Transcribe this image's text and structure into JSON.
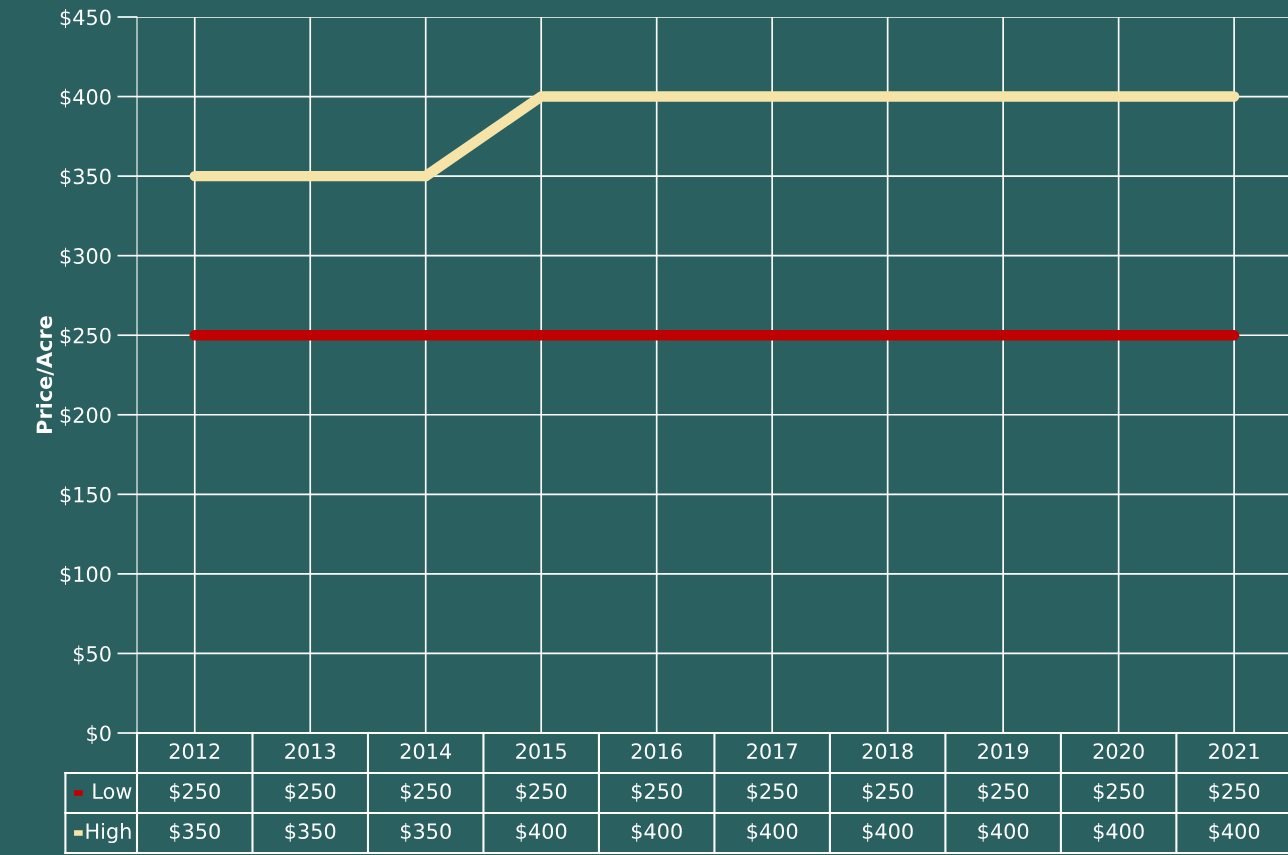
{
  "chart_data": {
    "type": "line",
    "ylabel": "Price/Acre",
    "categories": [
      "2012",
      "2013",
      "2014",
      "2015",
      "2016",
      "2017",
      "2018",
      "2019",
      "2020",
      "2021"
    ],
    "series": [
      {
        "name": "Low",
        "color": "#c00000",
        "values": [
          250,
          250,
          250,
          250,
          250,
          250,
          250,
          250,
          250,
          250
        ],
        "value_labels": [
          "$250",
          "$250",
          "$250",
          "$250",
          "$250",
          "$250",
          "$250",
          "$250",
          "$250",
          "$250"
        ]
      },
      {
        "name": "High",
        "color": "#f5e3a8",
        "values": [
          350,
          350,
          350,
          400,
          400,
          400,
          400,
          400,
          400,
          400
        ],
        "value_labels": [
          "$350",
          "$350",
          "$350",
          "$400",
          "$400",
          "$400",
          "$400",
          "$400",
          "$400",
          "$400"
        ]
      }
    ],
    "ylim": [
      0,
      450
    ],
    "yticks": [
      {
        "value": 0,
        "label": "$0"
      },
      {
        "value": 50,
        "label": "$50"
      },
      {
        "value": 100,
        "label": "$100"
      },
      {
        "value": 150,
        "label": "$150"
      },
      {
        "value": 200,
        "label": "$200"
      },
      {
        "value": 250,
        "label": "$250"
      },
      {
        "value": 300,
        "label": "$300"
      },
      {
        "value": 350,
        "label": "$350"
      },
      {
        "value": 400,
        "label": "$400"
      },
      {
        "value": 450,
        "label": "$450"
      }
    ],
    "grid": true,
    "marker": "none",
    "line_style": "solid",
    "legend": "bottom left"
  }
}
